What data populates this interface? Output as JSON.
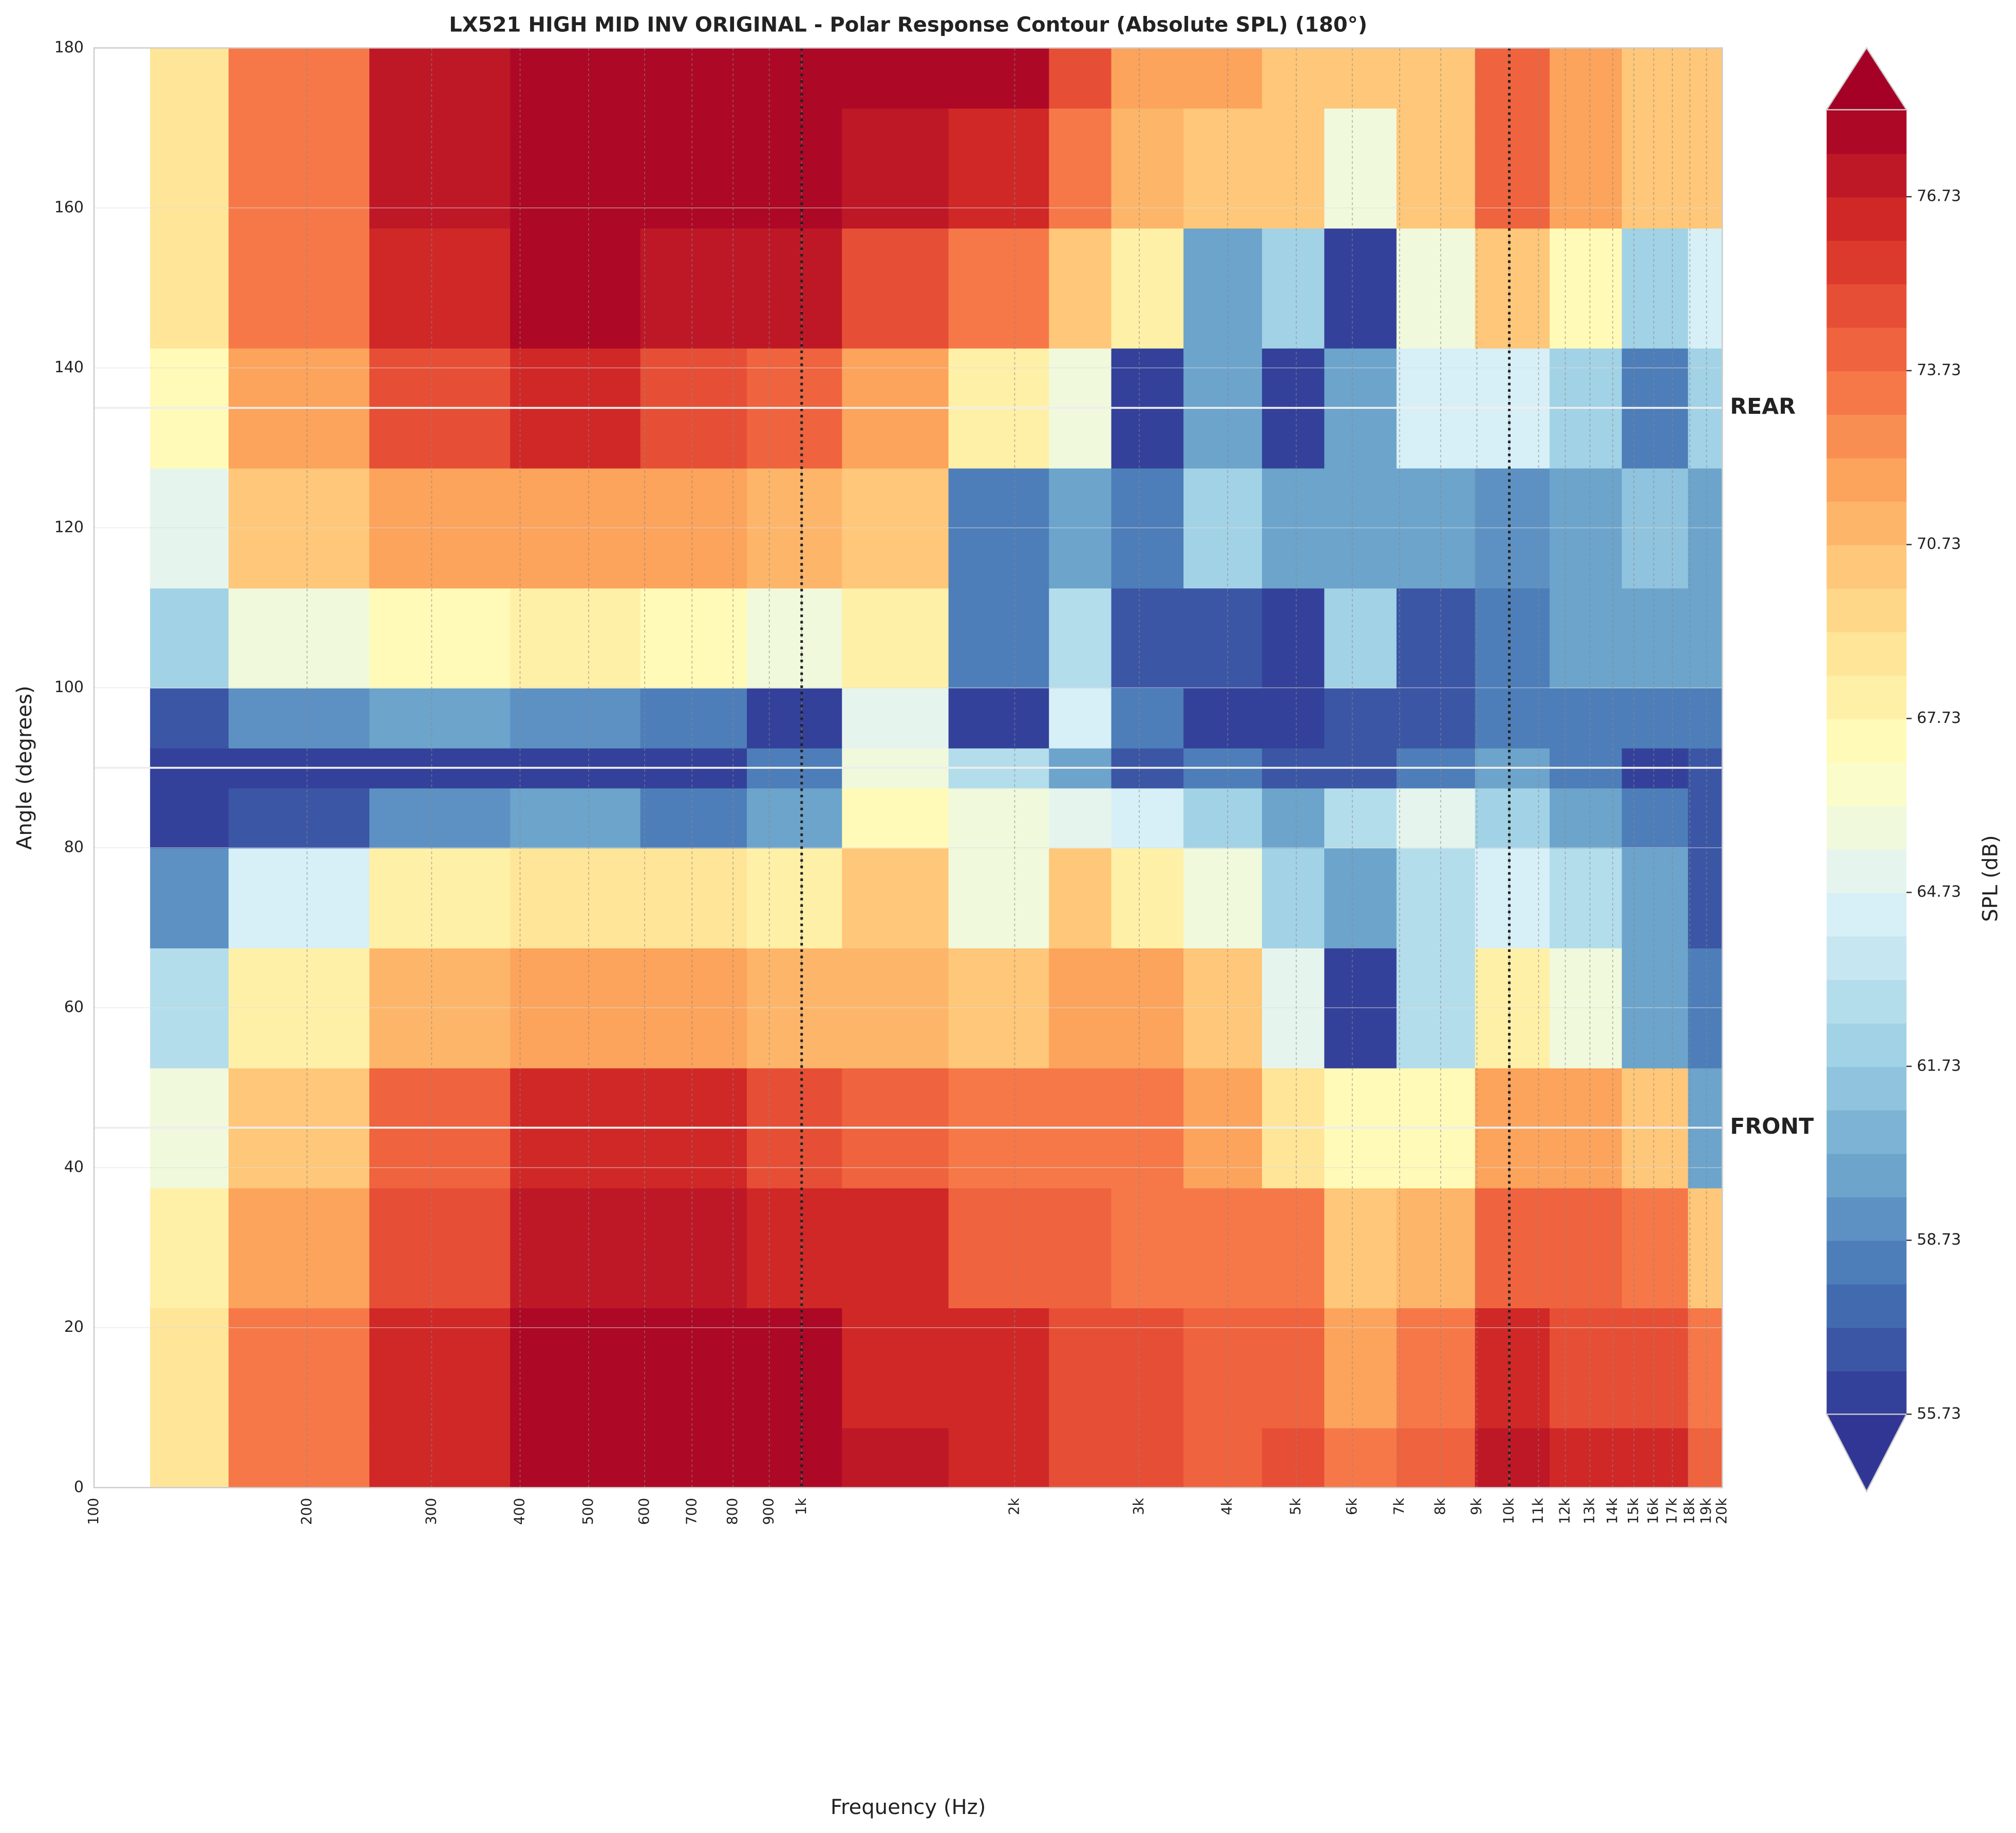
{
  "chart_data": {
    "type": "contour",
    "title": "LX521 HIGH MID INV ORIGINAL - Polar Response Contour (Absolute SPL) (180°)",
    "x_label": "Frequency (Hz)",
    "y_label": "Angle (degrees)",
    "colorbar_label": "SPL (dB)",
    "x_scale": "log",
    "colormap": "RdYlBu_r",
    "xlim": [
      100,
      20000
    ],
    "ylim": [
      0,
      180
    ],
    "clim": [
      55.73,
      78.23
    ],
    "xticks": [
      100,
      200,
      300,
      400,
      500,
      600,
      700,
      800,
      900,
      {
        "value": 1000,
        "label": "1k"
      },
      {
        "value": 2000,
        "label": "2k"
      },
      {
        "value": 3000,
        "label": "3k"
      },
      {
        "value": 4000,
        "label": "4k"
      },
      {
        "value": 5000,
        "label": "5k"
      },
      {
        "value": 6000,
        "label": "6k"
      },
      {
        "value": 7000,
        "label": "7k"
      },
      {
        "value": 8000,
        "label": "8k"
      },
      {
        "value": 9000,
        "label": "9k"
      },
      {
        "value": 10000,
        "label": "10k"
      },
      {
        "value": 11000,
        "label": "11k"
      },
      {
        "value": 12000,
        "label": "12k"
      },
      {
        "value": 13000,
        "label": "13k"
      },
      {
        "value": 14000,
        "label": "14k"
      },
      {
        "value": 15000,
        "label": "15k"
      },
      {
        "value": 16000,
        "label": "16k"
      },
      {
        "value": 17000,
        "label": "17k"
      },
      {
        "value": 18000,
        "label": "18k"
      },
      {
        "value": 19000,
        "label": "19k"
      },
      {
        "value": 20000,
        "label": "20k"
      }
    ],
    "yticks": [
      0,
      20,
      40,
      60,
      80,
      100,
      120,
      140,
      160,
      180
    ],
    "cticks": [
      55.73,
      58.73,
      61.73,
      64.73,
      67.73,
      70.73,
      73.73,
      76.73
    ],
    "vlines": [
      1000,
      10000
    ],
    "hlines": [
      45,
      90,
      135
    ],
    "annotations": [
      {
        "text": "REAR",
        "y": 135,
        "color": "#d62728"
      },
      {
        "text": "FRONT",
        "y": 45,
        "color": "#2a44a8"
      }
    ],
    "x": [
      120,
      200,
      300,
      500,
      700,
      1000,
      1300,
      2000,
      2500,
      3000,
      4000,
      5000,
      6000,
      8000,
      10000,
      13000,
      16000,
      20000
    ],
    "y": [
      0,
      15,
      30,
      45,
      60,
      75,
      85,
      90,
      95,
      105,
      120,
      135,
      150,
      165,
      180
    ],
    "z": [
      [
        69,
        73,
        76,
        78,
        78,
        78,
        77,
        76,
        75,
        75,
        74,
        75,
        73,
        74,
        77,
        76,
        76,
        74
      ],
      [
        69,
        73,
        76,
        78,
        78,
        78,
        76,
        76,
        75,
        75,
        74,
        74,
        72,
        73,
        76,
        75,
        75,
        73
      ],
      [
        68,
        72,
        75,
        77,
        77,
        76,
        76,
        74,
        74,
        73,
        73,
        73,
        70,
        71,
        74,
        74,
        73,
        70
      ],
      [
        66,
        70,
        74,
        76,
        76,
        75,
        74,
        73,
        73,
        73,
        72,
        69,
        67,
        67,
        72,
        72,
        70,
        60
      ],
      [
        63,
        68,
        71,
        72,
        72,
        71,
        71,
        70,
        72,
        72,
        70,
        65,
        56,
        63,
        68,
        66,
        60,
        58
      ],
      [
        59,
        64,
        68,
        69,
        69,
        68,
        70,
        66,
        70,
        68,
        66,
        62,
        60,
        63,
        64,
        63,
        60,
        57
      ],
      [
        56,
        57,
        59,
        60,
        58,
        60,
        67,
        66,
        65,
        64,
        62,
        60,
        63,
        65,
        62,
        60,
        58,
        57
      ],
      [
        56,
        56,
        56,
        56,
        56,
        58,
        66,
        63,
        60,
        57,
        58,
        57,
        57,
        58,
        60,
        58,
        56,
        57
      ],
      [
        57,
        59,
        60,
        59,
        58,
        56,
        65,
        56,
        64,
        58,
        56,
        56,
        57,
        57,
        58,
        58,
        58,
        58
      ],
      [
        62,
        66,
        67,
        68,
        67,
        66,
        68,
        58,
        63,
        57,
        57,
        56,
        62,
        57,
        58,
        60,
        60,
        60
      ],
      [
        65,
        70,
        72,
        72,
        72,
        71,
        70,
        58,
        60,
        58,
        62,
        60,
        60,
        60,
        59,
        60,
        61,
        60
      ],
      [
        67,
        72,
        75,
        76,
        75,
        74,
        72,
        68,
        66,
        56,
        60,
        56,
        60,
        64,
        64,
        62,
        58,
        62
      ],
      [
        69,
        73,
        76,
        78,
        77,
        77,
        75,
        73,
        70,
        68,
        60,
        62,
        56,
        66,
        70,
        67,
        62,
        64
      ],
      [
        69,
        73,
        77,
        78,
        78,
        78,
        77,
        76,
        73,
        71,
        70,
        70,
        66,
        70,
        74,
        72,
        70,
        70
      ],
      [
        69,
        73,
        77,
        78,
        78,
        78,
        78,
        78,
        75,
        72,
        72,
        70,
        70,
        70,
        74,
        72,
        70,
        70
      ]
    ]
  }
}
